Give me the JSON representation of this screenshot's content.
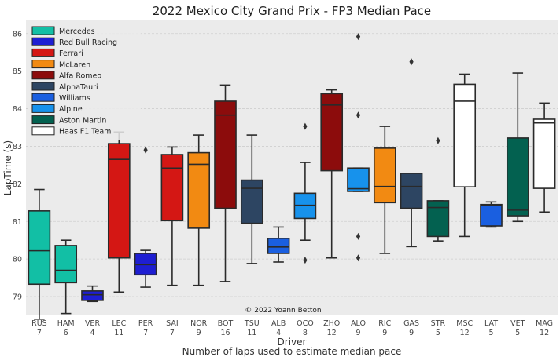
{
  "chart_data": {
    "type": "box",
    "title": "2022 Mexico City Grand Prix - FP3 Median Pace",
    "xlabel": "Driver",
    "xlabel2": "Number of laps used to estimate median pace",
    "ylabel": "LapTime (s)",
    "ylim": [
      78.5,
      86.35
    ],
    "yticks": [
      79,
      80,
      81,
      82,
      83,
      84,
      85,
      86
    ],
    "grid": true,
    "legend_position": "top-left",
    "annotation": "© 2022 Yoann Betton",
    "teams": [
      {
        "name": "Mercedes",
        "color": "#12bfa5"
      },
      {
        "name": "Red Bull Racing",
        "color": "#1e1ed2"
      },
      {
        "name": "Ferrari",
        "color": "#d41714"
      },
      {
        "name": "McLaren",
        "color": "#f28a12"
      },
      {
        "name": "Alfa Romeo",
        "color": "#8c0c0c"
      },
      {
        "name": "AlphaTauri",
        "color": "#2d4562"
      },
      {
        "name": "Williams",
        "color": "#1a5fe0"
      },
      {
        "name": "Alpine",
        "color": "#1792ec"
      },
      {
        "name": "Aston Martin",
        "color": "#036150"
      },
      {
        "name": "Haas F1 Team",
        "color": "#ffffff"
      }
    ],
    "drivers": [
      {
        "code": "RUS",
        "laps": "7",
        "team": 0,
        "wlo": 78.4,
        "q1": 79.33,
        "med": 80.22,
        "q3": 81.28,
        "whi": 81.85,
        "outliers": []
      },
      {
        "code": "HAM",
        "laps": "6",
        "team": 0,
        "wlo": 78.55,
        "q1": 79.37,
        "med": 79.7,
        "q3": 80.36,
        "whi": 80.5,
        "outliers": []
      },
      {
        "code": "VER",
        "laps": "4",
        "team": 1,
        "wlo": 78.87,
        "q1": 78.9,
        "med": 79.05,
        "q3": 79.15,
        "whi": 79.28,
        "outliers": []
      },
      {
        "code": "LEC",
        "laps": "11",
        "team": 2,
        "wlo": 79.12,
        "q1": 80.03,
        "med": 82.65,
        "q3": 83.07,
        "whi": 83.38,
        "outliers": []
      },
      {
        "code": "PER",
        "laps": "7",
        "team": 1,
        "wlo": 79.25,
        "q1": 79.58,
        "med": 79.85,
        "q3": 80.15,
        "whi": 80.23,
        "outliers": [
          82.9
        ]
      },
      {
        "code": "SAI",
        "laps": "7",
        "team": 2,
        "wlo": 79.3,
        "q1": 81.02,
        "med": 82.42,
        "q3": 82.78,
        "whi": 82.98,
        "outliers": []
      },
      {
        "code": "NOR",
        "laps": "9",
        "team": 3,
        "wlo": 79.3,
        "q1": 80.82,
        "med": 82.52,
        "q3": 82.83,
        "whi": 83.3,
        "outliers": []
      },
      {
        "code": "BOT",
        "laps": "16",
        "team": 4,
        "wlo": 79.4,
        "q1": 81.35,
        "med": 83.83,
        "q3": 84.2,
        "whi": 84.63,
        "outliers": []
      },
      {
        "code": "TSU",
        "laps": "11",
        "team": 5,
        "wlo": 79.88,
        "q1": 80.95,
        "med": 81.88,
        "q3": 82.1,
        "whi": 83.3,
        "outliers": []
      },
      {
        "code": "ALB",
        "laps": "4",
        "team": 6,
        "wlo": 79.92,
        "q1": 80.15,
        "med": 80.32,
        "q3": 80.55,
        "whi": 80.85,
        "outliers": []
      },
      {
        "code": "OCO",
        "laps": "8",
        "team": 7,
        "wlo": 80.5,
        "q1": 81.08,
        "med": 81.43,
        "q3": 81.75,
        "whi": 82.57,
        "outliers": [
          83.53,
          79.97
        ]
      },
      {
        "code": "ZHO",
        "laps": "12",
        "team": 4,
        "wlo": 80.03,
        "q1": 82.35,
        "med": 84.1,
        "q3": 84.4,
        "whi": 84.5,
        "outliers": []
      },
      {
        "code": "ALO",
        "laps": "9",
        "team": 7,
        "wlo": 81.8,
        "q1": 81.8,
        "med": 81.87,
        "q3": 82.42,
        "whi": 82.42,
        "outliers": [
          85.92,
          83.83,
          80.6,
          80.03
        ]
      },
      {
        "code": "RIC",
        "laps": "9",
        "team": 3,
        "wlo": 80.15,
        "q1": 81.5,
        "med": 81.93,
        "q3": 82.95,
        "whi": 83.53,
        "outliers": []
      },
      {
        "code": "GAS",
        "laps": "9",
        "team": 5,
        "wlo": 80.33,
        "q1": 81.35,
        "med": 81.93,
        "q3": 82.28,
        "whi": 82.28,
        "outliers": [
          85.25
        ]
      },
      {
        "code": "STR",
        "laps": "5",
        "team": 8,
        "wlo": 80.48,
        "q1": 80.6,
        "med": 81.37,
        "q3": 81.55,
        "whi": 81.55,
        "outliers": [
          83.15
        ]
      },
      {
        "code": "MSC",
        "laps": "12",
        "team": 9,
        "wlo": 80.6,
        "q1": 81.92,
        "med": 84.2,
        "q3": 84.65,
        "whi": 84.92,
        "outliers": []
      },
      {
        "code": "LAT",
        "laps": "5",
        "team": 6,
        "wlo": 80.85,
        "q1": 80.88,
        "med": 81.42,
        "q3": 81.45,
        "whi": 81.52,
        "outliers": []
      },
      {
        "code": "VET",
        "laps": "5",
        "team": 8,
        "wlo": 81.0,
        "q1": 81.15,
        "med": 81.3,
        "q3": 83.22,
        "whi": 84.95,
        "outliers": []
      },
      {
        "code": "MAG",
        "laps": "12",
        "team": 9,
        "wlo": 81.25,
        "q1": 81.88,
        "med": 83.62,
        "q3": 83.72,
        "whi": 84.15,
        "outliers": []
      }
    ]
  }
}
